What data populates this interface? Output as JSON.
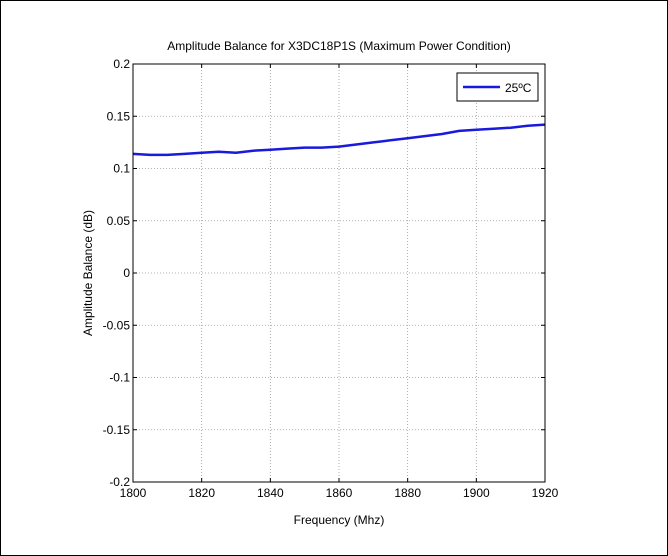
{
  "chart_data": {
    "type": "line",
    "title": "Amplitude Balance for X3DC18P1S (Maximum Power Condition)",
    "xlabel": "Frequency (Mhz)",
    "ylabel": "Amplitude Balance (dB)",
    "xlim": [
      1800,
      1920
    ],
    "ylim": [
      -0.2,
      0.2
    ],
    "xticks": [
      "1800",
      "1820",
      "1840",
      "1860",
      "1880",
      "1900",
      "1920"
    ],
    "yticks": [
      "0.2",
      "0.15",
      "0.1",
      "0.05",
      "0",
      "-0.05",
      "-0.1",
      "-0.15",
      "-0.2"
    ],
    "grid": true,
    "legend_position": "top-right",
    "series": [
      {
        "name": "25ºC",
        "color": "#1a1adc",
        "x": [
          1800,
          1805,
          1810,
          1815,
          1820,
          1825,
          1830,
          1835,
          1840,
          1845,
          1850,
          1855,
          1860,
          1865,
          1870,
          1875,
          1880,
          1885,
          1890,
          1895,
          1900,
          1905,
          1910,
          1915,
          1920
        ],
        "y": [
          0.114,
          0.113,
          0.113,
          0.114,
          0.115,
          0.116,
          0.115,
          0.117,
          0.118,
          0.119,
          0.12,
          0.12,
          0.121,
          0.123,
          0.125,
          0.127,
          0.129,
          0.131,
          0.133,
          0.136,
          0.137,
          0.138,
          0.139,
          0.141,
          0.142
        ]
      }
    ]
  }
}
